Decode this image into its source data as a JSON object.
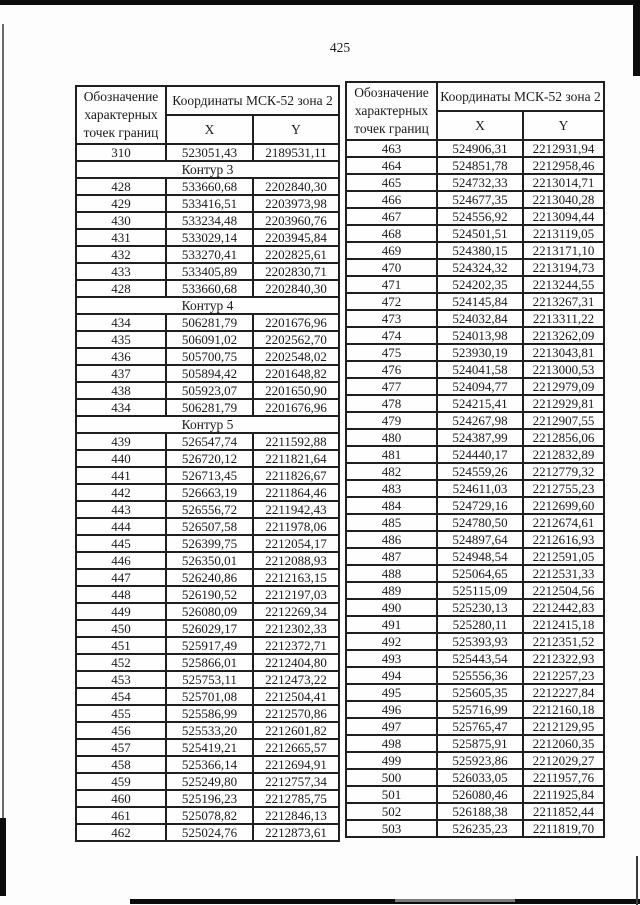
{
  "page_number": "425",
  "ink_color": "#1b1b1b",
  "table_header": {
    "col1": "Обозначение характерных точек границ",
    "col2": "Координаты МСК-52 зона 2",
    "x": "X",
    "y": "Y"
  },
  "left_table": {
    "rows": [
      {
        "p": "310",
        "x": "523051,43",
        "y": "2189531,11"
      },
      {
        "s": "Контур 3"
      },
      {
        "p": "428",
        "x": "533660,68",
        "y": "2202840,30"
      },
      {
        "p": "429",
        "x": "533416,51",
        "y": "2203973,98"
      },
      {
        "p": "430",
        "x": "533234,48",
        "y": "2203960,76"
      },
      {
        "p": "431",
        "x": "533029,14",
        "y": "2203945,84"
      },
      {
        "p": "432",
        "x": "533270,41",
        "y": "2202825,61"
      },
      {
        "p": "433",
        "x": "533405,89",
        "y": "2202830,71"
      },
      {
        "p": "428",
        "x": "533660,68",
        "y": "2202840,30"
      },
      {
        "s": "Контур 4"
      },
      {
        "p": "434",
        "x": "506281,79",
        "y": "2201676,96"
      },
      {
        "p": "435",
        "x": "506091,02",
        "y": "2202562,70"
      },
      {
        "p": "436",
        "x": "505700,75",
        "y": "2202548,02"
      },
      {
        "p": "437",
        "x": "505894,42",
        "y": "2201648,82"
      },
      {
        "p": "438",
        "x": "505923,07",
        "y": "2201650,90"
      },
      {
        "p": "434",
        "x": "506281,79",
        "y": "2201676,96"
      },
      {
        "s": "Контур 5"
      },
      {
        "p": "439",
        "x": "526547,74",
        "y": "2211592,88"
      },
      {
        "p": "440",
        "x": "526720,12",
        "y": "2211821,64"
      },
      {
        "p": "441",
        "x": "526713,45",
        "y": "2211826,67"
      },
      {
        "p": "442",
        "x": "526663,19",
        "y": "2211864,46"
      },
      {
        "p": "443",
        "x": "526556,72",
        "y": "2211942,43"
      },
      {
        "p": "444",
        "x": "526507,58",
        "y": "2211978,06"
      },
      {
        "p": "445",
        "x": "526399,75",
        "y": "2212054,17"
      },
      {
        "p": "446",
        "x": "526350,01",
        "y": "2212088,93"
      },
      {
        "p": "447",
        "x": "526240,86",
        "y": "2212163,15"
      },
      {
        "p": "448",
        "x": "526190,52",
        "y": "2212197,03"
      },
      {
        "p": "449",
        "x": "526080,09",
        "y": "2212269,34"
      },
      {
        "p": "450",
        "x": "526029,17",
        "y": "2212302,33"
      },
      {
        "p": "451",
        "x": "525917,49",
        "y": "2212372,71"
      },
      {
        "p": "452",
        "x": "525866,01",
        "y": "2212404,80"
      },
      {
        "p": "453",
        "x": "525753,11",
        "y": "2212473,22"
      },
      {
        "p": "454",
        "x": "525701,08",
        "y": "2212504,41"
      },
      {
        "p": "455",
        "x": "525586,99",
        "y": "2212570,86"
      },
      {
        "p": "456",
        "x": "525533,20",
        "y": "2212601,82"
      },
      {
        "p": "457",
        "x": "525419,21",
        "y": "2212665,57"
      },
      {
        "p": "458",
        "x": "525366,14",
        "y": "2212694,91"
      },
      {
        "p": "459",
        "x": "525249,80",
        "y": "2212757,34"
      },
      {
        "p": "460",
        "x": "525196,23",
        "y": "2212785,75"
      },
      {
        "p": "461",
        "x": "525078,82",
        "y": "2212846,13"
      },
      {
        "p": "462",
        "x": "525024,76",
        "y": "2212873,61"
      }
    ]
  },
  "right_table": {
    "rows": [
      {
        "p": "463",
        "x": "524906,31",
        "y": "2212931,94"
      },
      {
        "p": "464",
        "x": "524851,78",
        "y": "2212958,46"
      },
      {
        "p": "465",
        "x": "524732,33",
        "y": "2213014,71"
      },
      {
        "p": "466",
        "x": "524677,35",
        "y": "2213040,28"
      },
      {
        "p": "467",
        "x": "524556,92",
        "y": "2213094,44"
      },
      {
        "p": "468",
        "x": "524501,51",
        "y": "2213119,05"
      },
      {
        "p": "469",
        "x": "524380,15",
        "y": "2213171,10"
      },
      {
        "p": "470",
        "x": "524324,32",
        "y": "2213194,73"
      },
      {
        "p": "471",
        "x": "524202,35",
        "y": "2213244,55"
      },
      {
        "p": "472",
        "x": "524145,84",
        "y": "2213267,31"
      },
      {
        "p": "473",
        "x": "524032,84",
        "y": "2213311,22"
      },
      {
        "p": "474",
        "x": "524013,98",
        "y": "2213262,09"
      },
      {
        "p": "475",
        "x": "523930,19",
        "y": "2213043,81"
      },
      {
        "p": "476",
        "x": "524041,58",
        "y": "2213000,53"
      },
      {
        "p": "477",
        "x": "524094,77",
        "y": "2212979,09"
      },
      {
        "p": "478",
        "x": "524215,41",
        "y": "2212929,81"
      },
      {
        "p": "479",
        "x": "524267,98",
        "y": "2212907,55"
      },
      {
        "p": "480",
        "x": "524387,99",
        "y": "2212856,06"
      },
      {
        "p": "481",
        "x": "524440,17",
        "y": "2212832,89"
      },
      {
        "p": "482",
        "x": "524559,26",
        "y": "2212779,32"
      },
      {
        "p": "483",
        "x": "524611,03",
        "y": "2212755,23"
      },
      {
        "p": "484",
        "x": "524729,16",
        "y": "2212699,60"
      },
      {
        "p": "485",
        "x": "524780,50",
        "y": "2212674,61"
      },
      {
        "p": "486",
        "x": "524897,64",
        "y": "2212616,93"
      },
      {
        "p": "487",
        "x": "524948,54",
        "y": "2212591,05"
      },
      {
        "p": "488",
        "x": "525064,65",
        "y": "2212531,33"
      },
      {
        "p": "489",
        "x": "525115,09",
        "y": "2212504,56"
      },
      {
        "p": "490",
        "x": "525230,13",
        "y": "2212442,83"
      },
      {
        "p": "491",
        "x": "525280,11",
        "y": "2212415,18"
      },
      {
        "p": "492",
        "x": "525393,93",
        "y": "2212351,52"
      },
      {
        "p": "493",
        "x": "525443,54",
        "y": "2212322,93"
      },
      {
        "p": "494",
        "x": "525556,36",
        "y": "2212257,23"
      },
      {
        "p": "495",
        "x": "525605,35",
        "y": "2212227,84"
      },
      {
        "p": "496",
        "x": "525716,99",
        "y": "2212160,18"
      },
      {
        "p": "497",
        "x": "525765,47",
        "y": "2212129,95"
      },
      {
        "p": "498",
        "x": "525875,91",
        "y": "2212060,35"
      },
      {
        "p": "499",
        "x": "525923,86",
        "y": "2212029,27"
      },
      {
        "p": "500",
        "x": "526033,05",
        "y": "2211957,76"
      },
      {
        "p": "501",
        "x": "526080,46",
        "y": "2211925,84"
      },
      {
        "p": "502",
        "x": "526188,38",
        "y": "2211852,44"
      },
      {
        "p": "503",
        "x": "526235,23",
        "y": "2211819,70"
      }
    ]
  }
}
